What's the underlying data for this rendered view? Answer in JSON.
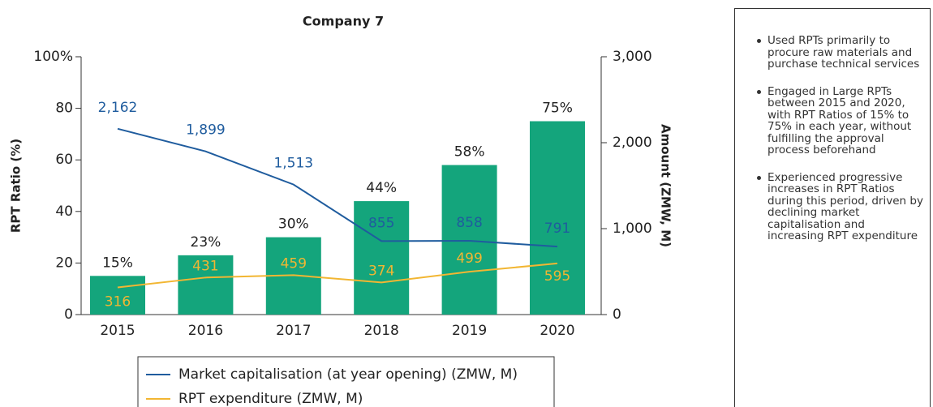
{
  "chart_data": {
    "type": "bar_line",
    "title": "Company 7",
    "ylabel": "RPT Ratio (%)",
    "y2label": "Amount (ZMW, M)",
    "categories": [
      "2015",
      "2016",
      "2017",
      "2018",
      "2019",
      "2020"
    ],
    "ylim": [
      0,
      100
    ],
    "yticks": [
      0,
      20,
      40,
      60,
      80,
      {
        "value": 100,
        "label": "100%"
      }
    ],
    "y2lim": [
      0,
      3000
    ],
    "y2ticks": [
      0,
      {
        "value": 1000,
        "label": "1,000"
      },
      {
        "value": 2000,
        "label": "2,000"
      },
      {
        "value": 3000,
        "label": "3,000"
      }
    ],
    "series": [
      {
        "type": "bar",
        "color": "#14a57c",
        "values": [
          15,
          23,
          30,
          44,
          58,
          75
        ],
        "value_labels": [
          "15%",
          "23%",
          "30%",
          "44%",
          "58%",
          "75%"
        ]
      },
      {
        "type": "line",
        "name": "Market capitalisation (at year opening) (ZMW, M)",
        "axis": "y2",
        "color": "#1f5c9e",
        "values": [
          2162,
          1899,
          1513,
          855,
          858,
          791
        ],
        "value_labels": [
          "2,162",
          "1,899",
          "1,513",
          "855",
          "858",
          "791"
        ]
      },
      {
        "type": "line",
        "name": "RPT expenditure (ZMW, M)",
        "axis": "y2",
        "color": "#f2b632",
        "values": [
          316,
          431,
          459,
          374,
          499,
          595
        ]
      }
    ]
  },
  "notes": [
    "Used RPTs primarily to procure raw materials and purchase technical services",
    "Engaged in Large RPTs between 2015 and 2020, with RPT Ratios of 15% to 75% in each year, without fulfilling the approval process beforehand",
    "Experienced progressive increases in RPT Ratios during this period, driven by declining market capitalisation and increasing RPT expenditure"
  ]
}
